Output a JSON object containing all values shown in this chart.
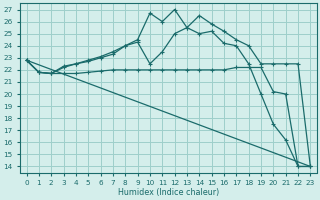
{
  "xlabel": "Humidex (Indice chaleur)",
  "bg_color": "#d4eeeb",
  "grid_color": "#9ecfca",
  "line_color": "#1a6b6b",
  "xlim": [
    -0.5,
    23.5
  ],
  "ylim": [
    13.5,
    27.5
  ],
  "xticks": [
    0,
    1,
    2,
    3,
    4,
    5,
    6,
    7,
    8,
    9,
    10,
    11,
    12,
    13,
    14,
    15,
    16,
    17,
    18,
    19,
    20,
    21,
    22,
    23
  ],
  "yticks": [
    14,
    15,
    16,
    17,
    18,
    19,
    20,
    21,
    22,
    23,
    24,
    25,
    26,
    27
  ],
  "line1_x": [
    0,
    1,
    2,
    3,
    4,
    5,
    6,
    7,
    8,
    9,
    10,
    11,
    12,
    13,
    14,
    15,
    16,
    17,
    18,
    19,
    20,
    21,
    22,
    23
  ],
  "line1_y": [
    22.8,
    21.8,
    21.7,
    22.3,
    22.5,
    22.8,
    23.1,
    23.5,
    24.0,
    24.5,
    26.7,
    26.0,
    27.0,
    25.5,
    26.5,
    25.8,
    25.2,
    24.5,
    24.0,
    22.5,
    22.5,
    22.5,
    22.5,
    14.0
  ],
  "line2_x": [
    0,
    1,
    2,
    3,
    4,
    5,
    6,
    7,
    8,
    9,
    10,
    11,
    12,
    13,
    14,
    15,
    16,
    17,
    18,
    19,
    20,
    21,
    22,
    23
  ],
  "line2_y": [
    22.8,
    21.8,
    21.7,
    22.2,
    22.5,
    22.7,
    23.0,
    23.3,
    24.0,
    24.3,
    22.5,
    23.5,
    25.0,
    25.5,
    25.0,
    25.2,
    24.2,
    24.0,
    22.5,
    20.0,
    17.5,
    16.2,
    14.0,
    14.0
  ],
  "line3_x": [
    0,
    1,
    2,
    3,
    4,
    5,
    6,
    7,
    8,
    9,
    10,
    11,
    12,
    13,
    14,
    15,
    16,
    17,
    18,
    19,
    20,
    21,
    22,
    23
  ],
  "line3_y": [
    22.8,
    21.8,
    21.7,
    21.7,
    21.7,
    21.8,
    21.9,
    22.0,
    22.0,
    22.0,
    22.0,
    22.0,
    22.0,
    22.0,
    22.0,
    22.0,
    22.0,
    22.2,
    22.2,
    22.2,
    20.2,
    20.0,
    14.0,
    14.0
  ],
  "line4_x": [
    0,
    23
  ],
  "line4_y": [
    22.8,
    14.0
  ],
  "marker": "+"
}
